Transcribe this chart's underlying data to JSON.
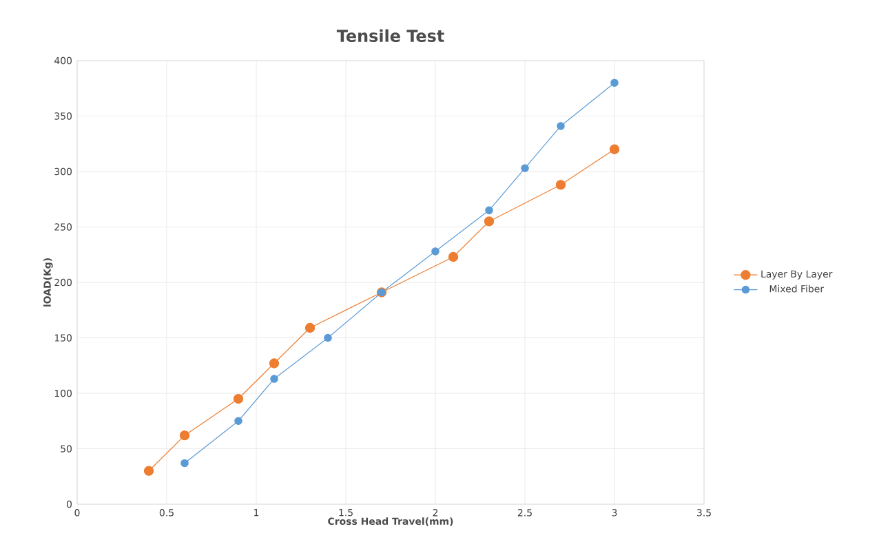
{
  "chart_data": {
    "type": "line",
    "title": "Tensile Test",
    "xlabel": "Cross Head Travel(mm)",
    "ylabel": "lOAD(Kg)",
    "xlim": [
      0,
      3.5
    ],
    "xticks": [
      0,
      0.5,
      1,
      1.5,
      2,
      2.5,
      3,
      3.5
    ],
    "ylim": [
      0,
      400
    ],
    "yticks": [
      0,
      50,
      100,
      150,
      200,
      250,
      300,
      350,
      400
    ],
    "grid": true,
    "legend": "right",
    "marker": "circle",
    "line_style": "solid",
    "series": [
      {
        "name": "Layer By Layer",
        "color": "#ed7d31",
        "x": [
          0.4,
          0.6,
          0.9,
          1.1,
          1.3,
          1.7,
          2.1,
          2.3,
          2.7,
          3.0
        ],
        "values": [
          30,
          62,
          95,
          127,
          159,
          191,
          223,
          255,
          288,
          320
        ]
      },
      {
        "name": "Mixed Fiber",
        "color": "#5b9bd5",
        "x": [
          0.6,
          0.9,
          1.1,
          1.4,
          1.7,
          2.0,
          2.3,
          2.5,
          2.7,
          3.0
        ],
        "values": [
          37,
          75,
          113,
          150,
          191,
          228,
          265,
          303,
          341,
          380
        ]
      }
    ]
  }
}
